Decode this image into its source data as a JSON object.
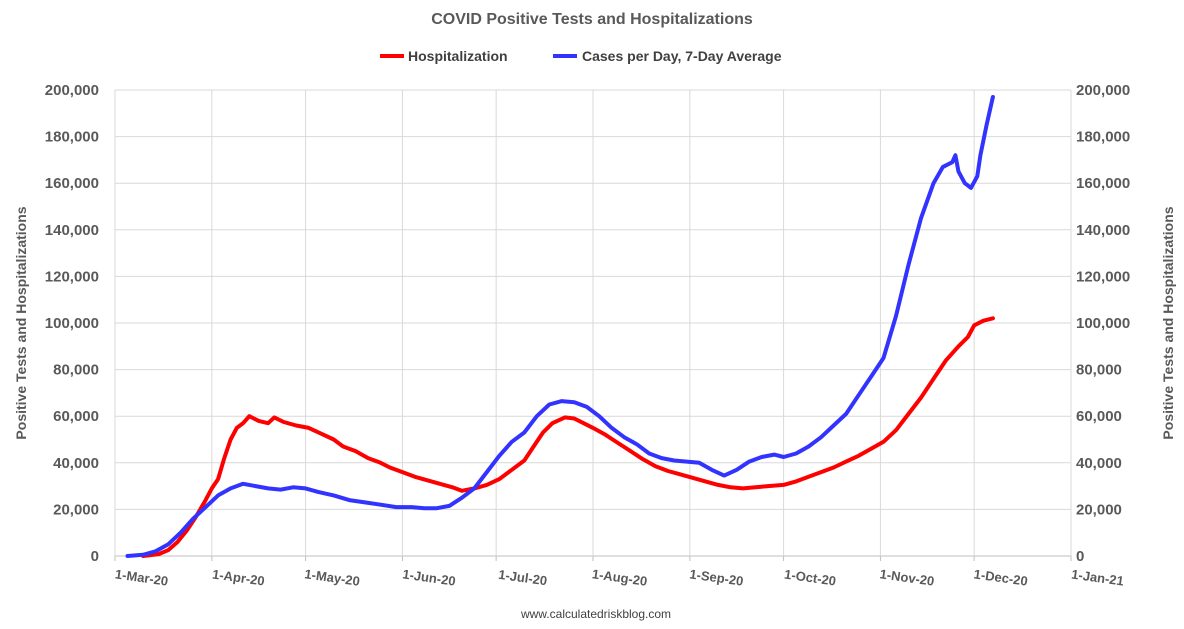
{
  "chart_data": {
    "type": "line",
    "title": "COVID Positive Tests and Hospitalizations",
    "ylabel_left": "Positive Tests and Hospitalizations",
    "ylabel_right": "Positive Tests and Hospitalizations",
    "footer": "www.calculatedriskblog.com",
    "legend_position": "top-center",
    "grid": true,
    "x_range": [
      "2020-03-01",
      "2021-01-01"
    ],
    "ylim": [
      0,
      200000
    ],
    "y_ticks": [
      "0",
      "20,000",
      "40,000",
      "60,000",
      "80,000",
      "100,000",
      "120,000",
      "140,000",
      "160,000",
      "180,000",
      "200,000"
    ],
    "x_ticks": [
      {
        "date": "2020-03-01",
        "label": "1-Mar-20"
      },
      {
        "date": "2020-04-01",
        "label": "1-Apr-20"
      },
      {
        "date": "2020-05-01",
        "label": "1-May-20"
      },
      {
        "date": "2020-06-01",
        "label": "1-Jun-20"
      },
      {
        "date": "2020-07-01",
        "label": "1-Jul-20"
      },
      {
        "date": "2020-08-01",
        "label": "1-Aug-20"
      },
      {
        "date": "2020-09-01",
        "label": "1-Sep-20"
      },
      {
        "date": "2020-10-01",
        "label": "1-Oct-20"
      },
      {
        "date": "2020-11-01",
        "label": "1-Nov-20"
      },
      {
        "date": "2020-12-01",
        "label": "1-Dec-20"
      },
      {
        "date": "2021-01-01",
        "label": "1-Jan-21"
      }
    ],
    "series": [
      {
        "name": "Hospitalization",
        "color": "#ff0000",
        "points": [
          [
            "2020-03-10",
            0
          ],
          [
            "2020-03-15",
            800
          ],
          [
            "2020-03-18",
            2500
          ],
          [
            "2020-03-21",
            6000
          ],
          [
            "2020-03-24",
            11000
          ],
          [
            "2020-03-27",
            17000
          ],
          [
            "2020-03-30",
            24000
          ],
          [
            "2020-04-01",
            29000
          ],
          [
            "2020-04-03",
            33000
          ],
          [
            "2020-04-05",
            42000
          ],
          [
            "2020-04-07",
            50000
          ],
          [
            "2020-04-09",
            55000
          ],
          [
            "2020-04-11",
            57000
          ],
          [
            "2020-04-13",
            60000
          ],
          [
            "2020-04-16",
            58000
          ],
          [
            "2020-04-19",
            57000
          ],
          [
            "2020-04-21",
            59500
          ],
          [
            "2020-04-24",
            57500
          ],
          [
            "2020-04-28",
            56000
          ],
          [
            "2020-05-02",
            55000
          ],
          [
            "2020-05-06",
            52500
          ],
          [
            "2020-05-10",
            50000
          ],
          [
            "2020-05-13",
            47000
          ],
          [
            "2020-05-17",
            45000
          ],
          [
            "2020-05-21",
            42000
          ],
          [
            "2020-05-25",
            40000
          ],
          [
            "2020-05-28",
            38000
          ],
          [
            "2020-06-01",
            36000
          ],
          [
            "2020-06-05",
            34000
          ],
          [
            "2020-06-09",
            32500
          ],
          [
            "2020-06-13",
            31000
          ],
          [
            "2020-06-17",
            29500
          ],
          [
            "2020-06-20",
            28000
          ],
          [
            "2020-06-24",
            29000
          ],
          [
            "2020-06-28",
            30500
          ],
          [
            "2020-07-02",
            33000
          ],
          [
            "2020-07-06",
            37000
          ],
          [
            "2020-07-10",
            41000
          ],
          [
            "2020-07-13",
            47000
          ],
          [
            "2020-07-16",
            53000
          ],
          [
            "2020-07-19",
            57000
          ],
          [
            "2020-07-23",
            59500
          ],
          [
            "2020-07-26",
            59000
          ],
          [
            "2020-07-29",
            57000
          ],
          [
            "2020-08-01",
            55000
          ],
          [
            "2020-08-05",
            52000
          ],
          [
            "2020-08-09",
            48500
          ],
          [
            "2020-08-13",
            45000
          ],
          [
            "2020-08-17",
            41500
          ],
          [
            "2020-08-21",
            38500
          ],
          [
            "2020-08-25",
            36500
          ],
          [
            "2020-08-29",
            35000
          ],
          [
            "2020-09-02",
            33500
          ],
          [
            "2020-09-06",
            32000
          ],
          [
            "2020-09-10",
            30500
          ],
          [
            "2020-09-14",
            29500
          ],
          [
            "2020-09-18",
            29000
          ],
          [
            "2020-09-22",
            29500
          ],
          [
            "2020-09-26",
            30000
          ],
          [
            "2020-10-01",
            30500
          ],
          [
            "2020-10-05",
            32000
          ],
          [
            "2020-10-09",
            34000
          ],
          [
            "2020-10-13",
            36000
          ],
          [
            "2020-10-17",
            38000
          ],
          [
            "2020-10-21",
            40500
          ],
          [
            "2020-10-25",
            43000
          ],
          [
            "2020-10-29",
            46000
          ],
          [
            "2020-11-02",
            49000
          ],
          [
            "2020-11-06",
            54000
          ],
          [
            "2020-11-10",
            61000
          ],
          [
            "2020-11-14",
            68000
          ],
          [
            "2020-11-18",
            76000
          ],
          [
            "2020-11-22",
            84000
          ],
          [
            "2020-11-26",
            90000
          ],
          [
            "2020-11-29",
            94000
          ],
          [
            "2020-12-01",
            99000
          ],
          [
            "2020-12-04",
            101000
          ],
          [
            "2020-12-07",
            102000
          ]
        ]
      },
      {
        "name": "Cases per Day, 7-Day Average",
        "color": "#3333ff",
        "points": [
          [
            "2020-03-05",
            0
          ],
          [
            "2020-03-10",
            500
          ],
          [
            "2020-03-14",
            2000
          ],
          [
            "2020-03-18",
            5000
          ],
          [
            "2020-03-22",
            10000
          ],
          [
            "2020-03-26",
            16000
          ],
          [
            "2020-03-30",
            21000
          ],
          [
            "2020-04-03",
            26000
          ],
          [
            "2020-04-07",
            29000
          ],
          [
            "2020-04-11",
            31000
          ],
          [
            "2020-04-15",
            30000
          ],
          [
            "2020-04-19",
            29000
          ],
          [
            "2020-04-23",
            28500
          ],
          [
            "2020-04-27",
            29500
          ],
          [
            "2020-05-01",
            29000
          ],
          [
            "2020-05-05",
            27500
          ],
          [
            "2020-05-10",
            26000
          ],
          [
            "2020-05-15",
            24000
          ],
          [
            "2020-05-20",
            23000
          ],
          [
            "2020-05-25",
            22000
          ],
          [
            "2020-05-30",
            21000
          ],
          [
            "2020-06-04",
            21000
          ],
          [
            "2020-06-08",
            20500
          ],
          [
            "2020-06-12",
            20500
          ],
          [
            "2020-06-16",
            21500
          ],
          [
            "2020-06-20",
            25000
          ],
          [
            "2020-06-24",
            29000
          ],
          [
            "2020-06-28",
            36000
          ],
          [
            "2020-07-02",
            43000
          ],
          [
            "2020-07-06",
            49000
          ],
          [
            "2020-07-10",
            53000
          ],
          [
            "2020-07-14",
            60000
          ],
          [
            "2020-07-18",
            65000
          ],
          [
            "2020-07-22",
            66500
          ],
          [
            "2020-07-26",
            66000
          ],
          [
            "2020-07-30",
            64000
          ],
          [
            "2020-08-03",
            60000
          ],
          [
            "2020-08-07",
            55000
          ],
          [
            "2020-08-11",
            51000
          ],
          [
            "2020-08-15",
            48000
          ],
          [
            "2020-08-19",
            44000
          ],
          [
            "2020-08-23",
            42000
          ],
          [
            "2020-08-27",
            41000
          ],
          [
            "2020-08-31",
            40500
          ],
          [
            "2020-09-04",
            40000
          ],
          [
            "2020-09-08",
            37000
          ],
          [
            "2020-09-12",
            34500
          ],
          [
            "2020-09-16",
            37000
          ],
          [
            "2020-09-20",
            40500
          ],
          [
            "2020-09-24",
            42500
          ],
          [
            "2020-09-28",
            43500
          ],
          [
            "2020-10-01",
            42500
          ],
          [
            "2020-10-05",
            44000
          ],
          [
            "2020-10-09",
            47000
          ],
          [
            "2020-10-13",
            51000
          ],
          [
            "2020-10-17",
            56000
          ],
          [
            "2020-10-21",
            61000
          ],
          [
            "2020-10-25",
            69000
          ],
          [
            "2020-10-29",
            77000
          ],
          [
            "2020-11-02",
            85000
          ],
          [
            "2020-11-06",
            103000
          ],
          [
            "2020-11-10",
            125000
          ],
          [
            "2020-11-14",
            145000
          ],
          [
            "2020-11-18",
            160000
          ],
          [
            "2020-11-21",
            167000
          ],
          [
            "2020-11-24",
            169000
          ],
          [
            "2020-11-25",
            172000
          ],
          [
            "2020-11-26",
            165000
          ],
          [
            "2020-11-28",
            160000
          ],
          [
            "2020-11-30",
            158000
          ],
          [
            "2020-12-02",
            163000
          ],
          [
            "2020-12-03",
            172000
          ],
          [
            "2020-12-05",
            185000
          ],
          [
            "2020-12-07",
            197000
          ]
        ]
      }
    ]
  }
}
